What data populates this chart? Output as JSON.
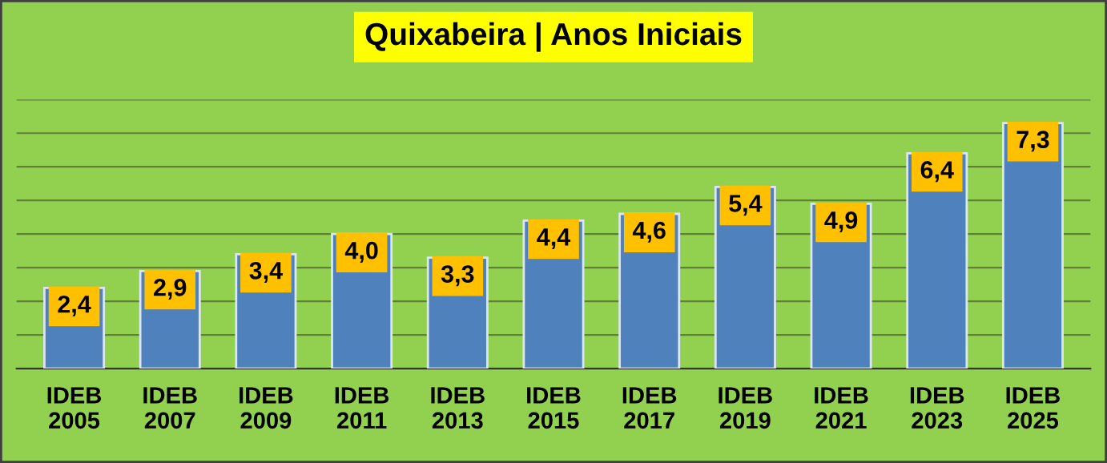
{
  "chart_data": {
    "type": "bar",
    "title": "Quixabeira | Anos Iniciais",
    "categories": [
      "IDEB\n2005",
      "IDEB\n2007",
      "IDEB\n2009",
      "IDEB\n2011",
      "IDEB\n2013",
      "IDEB\n2015",
      "IDEB\n2017",
      "IDEB\n2019",
      "IDEB\n2021",
      "IDEB\n2023",
      "IDEB\n2025"
    ],
    "values": [
      2.4,
      2.9,
      3.4,
      4.0,
      3.3,
      4.4,
      4.6,
      5.4,
      4.9,
      6.4,
      7.3
    ],
    "value_labels": [
      "2,4",
      "2,9",
      "3,4",
      "4,0",
      "3,3",
      "4,4",
      "4,6",
      "5,4",
      "4,9",
      "6,4",
      "7,3"
    ],
    "color": "#4f81bd",
    "ylim": [
      0,
      8
    ],
    "yticks": [
      {
        "value": 0,
        "label": null
      },
      {
        "value": 1,
        "label": null
      },
      {
        "value": 2,
        "label": null
      },
      {
        "value": 3,
        "label": null
      },
      {
        "value": 4,
        "label": null
      },
      {
        "value": 5,
        "label": null
      },
      {
        "value": 6,
        "label": null
      },
      {
        "value": 7,
        "label": null
      },
      {
        "value": 8,
        "label": null
      }
    ],
    "tick_labels": "x",
    "grid": "y",
    "legend": false
  }
}
